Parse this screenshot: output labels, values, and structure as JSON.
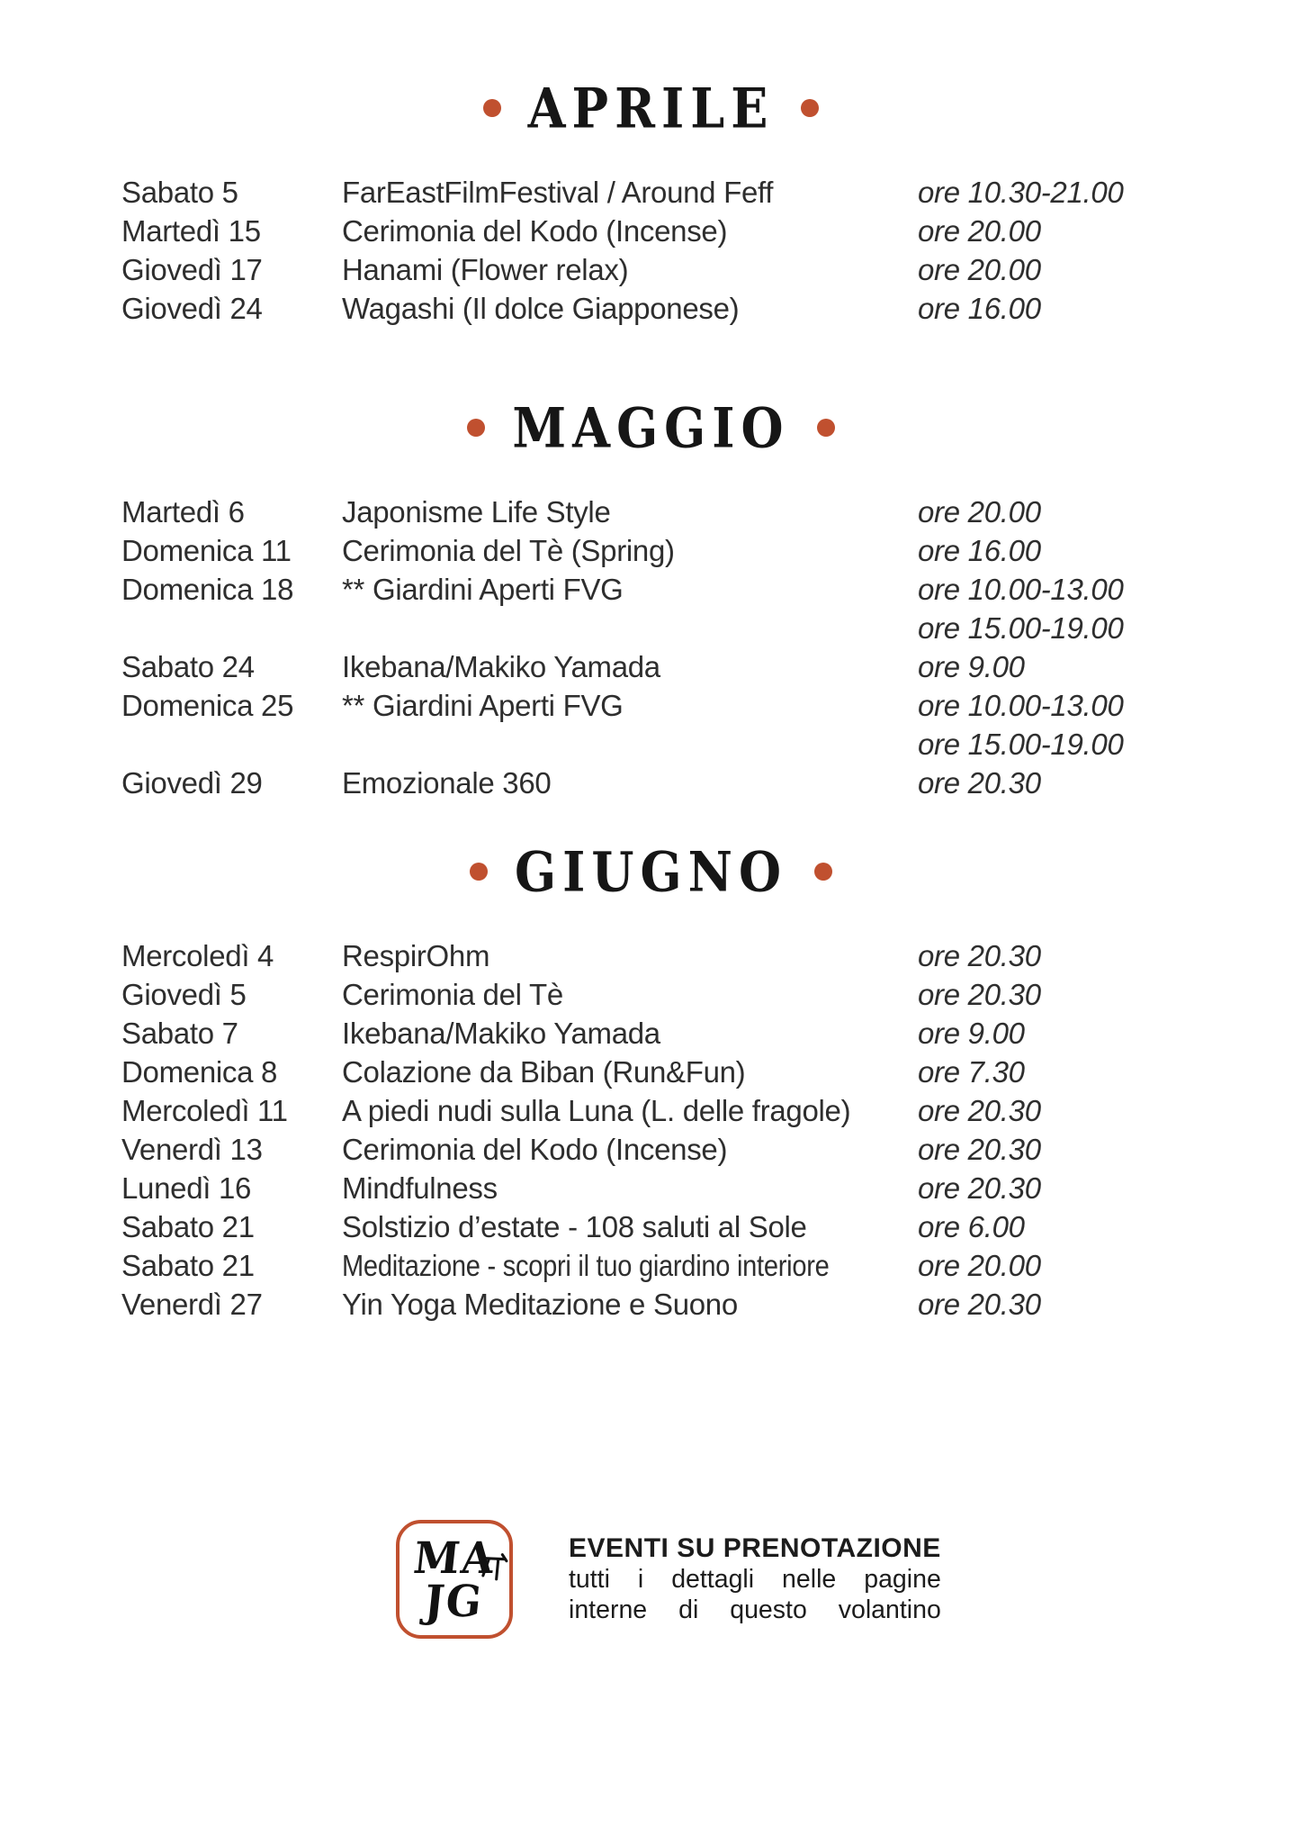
{
  "accent_color": "#c0502f",
  "text_color": "#2e2e2e",
  "sections": [
    {
      "title": "APRILE",
      "rows": [
        {
          "day": "Sabato 5",
          "event": "FarEastFilmFestival / Around Feff",
          "times": [
            "ore 10.30-21.00"
          ]
        },
        {
          "day": "Martedì 15",
          "event": "Cerimonia del Kodo (Incense)",
          "times": [
            "ore 20.00"
          ]
        },
        {
          "day": "Giovedì 17",
          "event": "Hanami (Flower relax)",
          "times": [
            "ore 20.00"
          ]
        },
        {
          "day": "Giovedì 24",
          "event": "Wagashi (Il dolce Giapponese)",
          "times": [
            "ore 16.00"
          ]
        }
      ]
    },
    {
      "title": "MAGGIO",
      "rows": [
        {
          "day": "Martedì 6",
          "event": "Japonisme Life Style",
          "times": [
            "ore 20.00"
          ]
        },
        {
          "day": "Domenica 11",
          "event": "Cerimonia del Tè (Spring)",
          "times": [
            "ore 16.00"
          ]
        },
        {
          "day": "Domenica 18",
          "event": "** Giardini Aperti FVG",
          "times": [
            "ore 10.00-13.00",
            "ore 15.00-19.00"
          ]
        },
        {
          "day": "Sabato 24",
          "event": "Ikebana/Makiko Yamada",
          "times": [
            "ore 9.00"
          ]
        },
        {
          "day": "Domenica 25",
          "event": "** Giardini Aperti FVG",
          "times": [
            "ore 10.00-13.00",
            "ore 15.00-19.00"
          ]
        },
        {
          "day": "Giovedì 29",
          "event": "Emozionale 360",
          "times": [
            "ore 20.30"
          ]
        }
      ]
    },
    {
      "title": "GIUGNO",
      "rows": [
        {
          "day": "Mercoledì 4",
          "event": "RespirOhm",
          "times": [
            "ore 20.30"
          ]
        },
        {
          "day": "Giovedì 5",
          "event": "Cerimonia del Tè",
          "times": [
            "ore 20.30"
          ]
        },
        {
          "day": "Sabato 7",
          "event": "Ikebana/Makiko Yamada",
          "times": [
            "ore 9.00"
          ]
        },
        {
          "day": "Domenica 8",
          "event": "Colazione da Biban (Run&Fun)",
          "times": [
            "ore 7.30"
          ]
        },
        {
          "day": "Mercoledì 11",
          "event": "A piedi nudi sulla Luna (L. delle fragole)",
          "times": [
            "ore 20.30"
          ]
        },
        {
          "day": "Venerdì 13",
          "event": "Cerimonia del Kodo (Incense)",
          "times": [
            "ore 20.30"
          ]
        },
        {
          "day": "Lunedì 16",
          "event": "Mindfulness",
          "times": [
            "ore 20.30"
          ]
        },
        {
          "day": "Sabato 21",
          "event": "Solstizio d’estate - 108 saluti al Sole",
          "times": [
            "ore 6.00"
          ]
        },
        {
          "day": "Sabato 21",
          "event": "Meditazione - scopri il tuo giardino interiore",
          "times": [
            "ore 20.00"
          ]
        },
        {
          "day": "Venerdì 27",
          "event": "Yin Yoga Meditazione e Suono",
          "times": [
            "ore 20.30"
          ]
        }
      ]
    }
  ],
  "footer": {
    "logo": {
      "line1": "MA",
      "line2": "JG",
      "icon": "bamboo"
    },
    "heading": "EVENTI SU PRENOTAZIONE",
    "lines": [
      "tutti i dettagli nelle pagine",
      "interne di questo volantino"
    ]
  }
}
